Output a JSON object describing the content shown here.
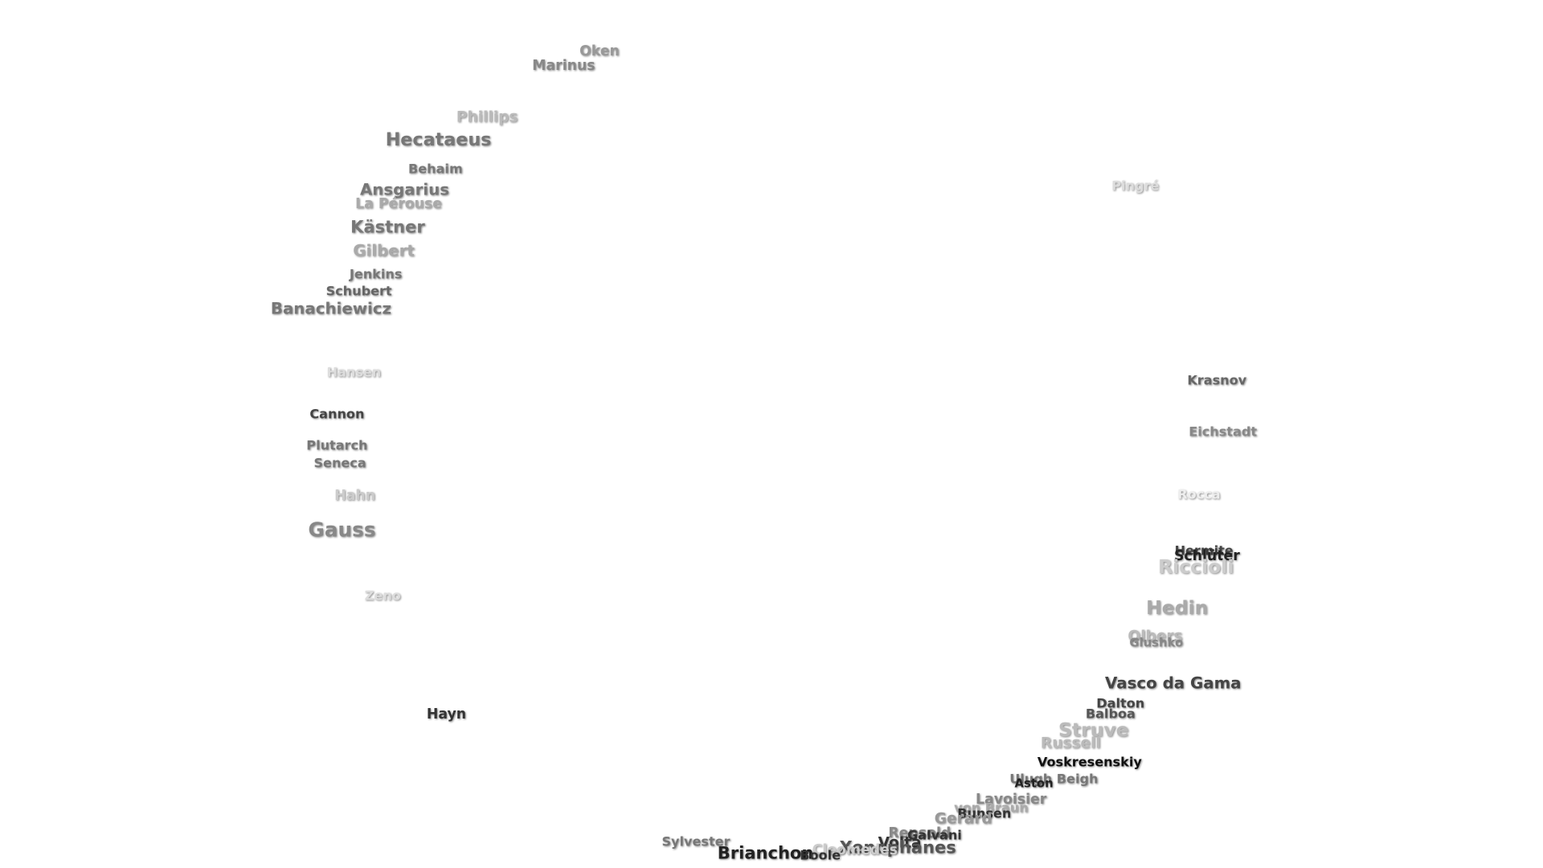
{
  "words": [
    "Oken",
    "Marinus",
    "Phillips",
    "Hecataeus",
    "Behaim",
    "Ansgarius",
    "La Pérouse",
    "Kästner",
    "Gilbert",
    "Jenkins",
    "Schubert",
    "Banachiewicz",
    "Hansen",
    "Cannon",
    "Plutarch",
    "Seneca",
    "Hahn",
    "Gauss",
    "Zeno",
    "Hayn",
    "Pingré",
    "Krasnov",
    "Eichstadt",
    "Rocca",
    "Hermite",
    "Schlüter",
    "Riccioli",
    "Hedin",
    "Olbers",
    "Glushko",
    "Vasco da Gama",
    "Dalton",
    "Balboa",
    "Struve",
    "Russell",
    "Voskresenskiy",
    "Ulugh Beigh",
    "Aston",
    "Lavoisier",
    "von Braun",
    "Bunsen",
    "Gerard",
    "Repsold",
    "Galvani",
    "Volta",
    "Xenophanes",
    "Cleomedes",
    "Sylvester",
    "Brianchon",
    "Boole"
  ]
}
